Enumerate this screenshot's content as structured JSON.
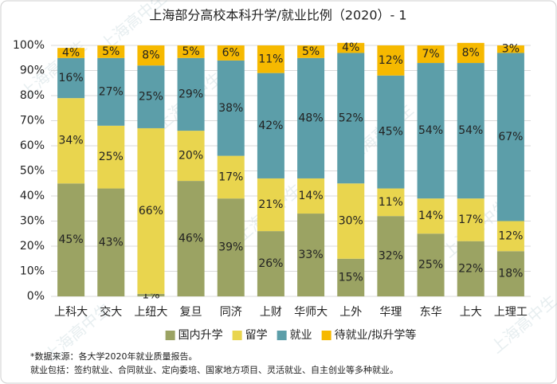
{
  "chart_data": {
    "type": "stacked_bar",
    "title": "上海部分高校本科升学/就业比例（2020）- 1",
    "categories": [
      "上科大",
      "交大",
      "上纽大",
      "复旦",
      "同济",
      "上财",
      "华师大",
      "上外",
      "华理",
      "东华",
      "上大",
      "上理工"
    ],
    "series": [
      {
        "name": "国内升学",
        "color": "#9ba363",
        "values": [
          45,
          43,
          1,
          46,
          39,
          26,
          33,
          15,
          32,
          25,
          22,
          18
        ],
        "value_labels": [
          "45%",
          "43%",
          "1%",
          "46%",
          "39%",
          "26%",
          "33%",
          "15%",
          "32%",
          "25%",
          "22%",
          "18%"
        ]
      },
      {
        "name": "留学",
        "color": "#e9d54e",
        "values": [
          34,
          25,
          66,
          20,
          17,
          21,
          14,
          30,
          11,
          14,
          17,
          12
        ],
        "value_labels": [
          "34%",
          "25%",
          "66%",
          "20%",
          "17%",
          "21%",
          "14%",
          "30%",
          "11%",
          "14%",
          "17%",
          "12%"
        ]
      },
      {
        "name": "就业",
        "color": "#5c9ea9",
        "values": [
          16,
          27,
          25,
          29,
          38,
          42,
          48,
          52,
          45,
          54,
          54,
          67
        ],
        "value_labels": [
          "16%",
          "27%",
          "25%",
          "29%",
          "38%",
          "42%",
          "48%",
          "52%",
          "45%",
          "54%",
          "54%",
          "67%"
        ]
      },
      {
        "name": "待就业/拟升学等",
        "color": "#f6b900",
        "values": [
          4,
          5,
          8,
          5,
          6,
          11,
          5,
          4,
          12,
          7,
          8,
          3
        ],
        "value_labels": [
          "4%",
          "5%",
          "8%",
          "5%",
          "6%",
          "11%",
          "5%",
          "4%",
          "12%",
          "7%",
          "8%",
          "3%"
        ]
      }
    ],
    "ylim": [
      0,
      100
    ],
    "yticks": [
      {
        "value": 0,
        "label": "0%"
      },
      {
        "value": 10,
        "label": "10%"
      },
      {
        "value": 20,
        "label": "20%"
      },
      {
        "value": 30,
        "label": "30%"
      },
      {
        "value": 40,
        "label": "40%"
      },
      {
        "value": 50,
        "label": "50%"
      },
      {
        "value": 60,
        "label": "60%"
      },
      {
        "value": 70,
        "label": "70%"
      },
      {
        "value": 80,
        "label": "80%"
      },
      {
        "value": 90,
        "label": "90%"
      },
      {
        "value": 100,
        "label": "100%"
      }
    ],
    "grid": true,
    "legend": "bottom",
    "notes": [
      "*数据来源：各大学2020年就业质量报告。",
      "就业包括：签约就业、合同就业、定向委培、国家地方项目、灵活就业、自主创业等多种就业。"
    ],
    "watermark": "上海高中生"
  }
}
